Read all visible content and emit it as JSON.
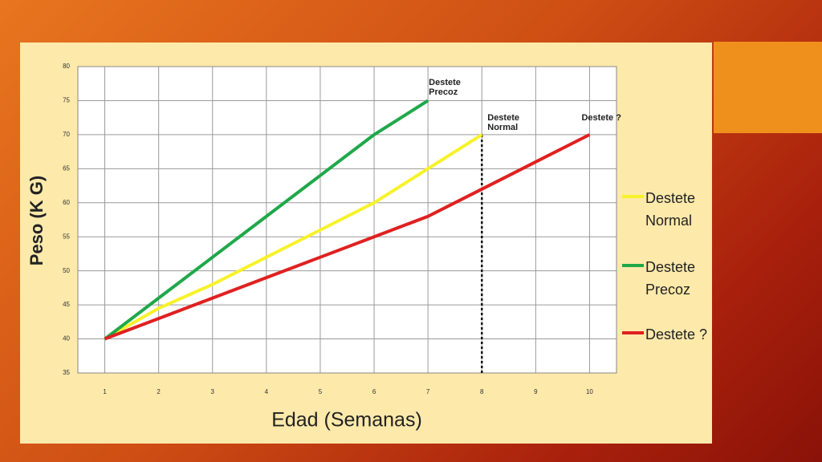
{
  "chart_data": {
    "type": "line",
    "y_label": "Peso (K G)",
    "x_label": "Edad (Semanas)",
    "xlim": [
      0.5,
      10.5
    ],
    "xticks": [
      1,
      2,
      3,
      4,
      5,
      6,
      7,
      8,
      9,
      10
    ],
    "ylim": [
      35,
      80
    ],
    "yticks": [
      35,
      40,
      45,
      50,
      55,
      60,
      65,
      70,
      75,
      80
    ],
    "grid": true,
    "series": [
      {
        "name": "Destete Normal",
        "color": "#f7f22a",
        "x": [
          1,
          2,
          3,
          4,
          5,
          6,
          7,
          8
        ],
        "values": [
          40,
          44.5,
          48,
          52,
          56,
          60,
          65,
          70
        ]
      },
      {
        "name": "Destete Precoz",
        "color": "#1fa84a",
        "x": [
          1,
          2,
          3,
          4,
          5,
          6,
          7
        ],
        "values": [
          40,
          46,
          52,
          58,
          64,
          70,
          75
        ]
      },
      {
        "name": "Destete ?",
        "color": "#e02020",
        "x": [
          1,
          2,
          3,
          4,
          5,
          6,
          7,
          8,
          9,
          10
        ],
        "values": [
          40,
          43,
          46,
          49,
          52,
          55,
          58,
          62,
          66,
          70
        ]
      }
    ],
    "annotations": [
      {
        "text": "Destete Precoz",
        "x": 7,
        "y": 75
      },
      {
        "text": "Destete Normal",
        "x": 8,
        "y": 70
      },
      {
        "text": "Destete ?",
        "x": 10,
        "y": 70
      }
    ],
    "dotted_line": {
      "x": 8,
      "y_top": 70
    }
  }
}
